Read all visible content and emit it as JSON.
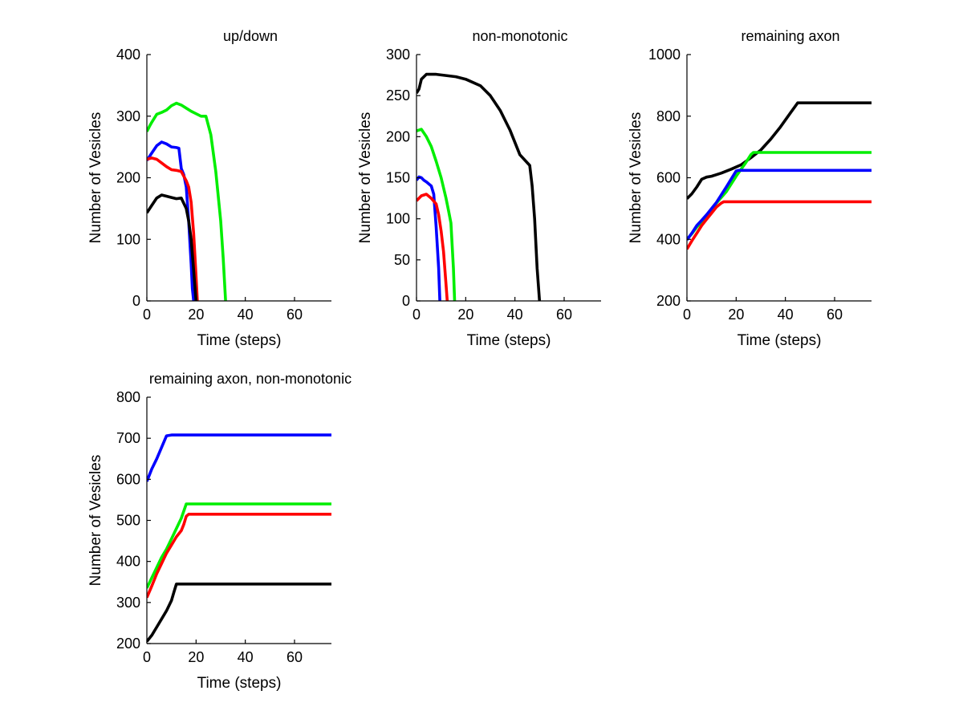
{
  "chart_data": [
    {
      "type": "line",
      "title": "up/down",
      "xlabel": "Time (steps)",
      "ylabel": "Number of Vesicles",
      "xlim": [
        0,
        75
      ],
      "ylim": [
        0,
        400
      ],
      "xticks": [
        0,
        20,
        40,
        60
      ],
      "yticks": [
        0,
        100,
        200,
        300,
        400
      ],
      "grid": false,
      "legend": "none",
      "series": [
        {
          "name": "green",
          "color": "#00ee00",
          "points": [
            [
              0,
              275
            ],
            [
              1,
              283
            ],
            [
              2,
              290
            ],
            [
              4,
              303
            ],
            [
              6,
              306
            ],
            [
              8,
              310
            ],
            [
              10,
              317
            ],
            [
              12,
              321
            ],
            [
              14,
              318
            ],
            [
              16,
              313
            ],
            [
              18,
              308
            ],
            [
              20,
              304
            ],
            [
              22,
              300
            ],
            [
              24,
              300
            ],
            [
              26,
              270
            ],
            [
              28,
              210
            ],
            [
              30,
              130
            ],
            [
              31,
              70
            ],
            [
              32,
              0
            ]
          ]
        },
        {
          "name": "blue",
          "color": "#0000ff",
          "points": [
            [
              0,
              228
            ],
            [
              2,
              240
            ],
            [
              4,
              252
            ],
            [
              6,
              258
            ],
            [
              8,
              255
            ],
            [
              10,
              250
            ],
            [
              12,
              249
            ],
            [
              13,
              248
            ],
            [
              14,
              215
            ],
            [
              15,
              205
            ],
            [
              16,
              185
            ],
            [
              17,
              130
            ],
            [
              18,
              60
            ],
            [
              18.5,
              20
            ],
            [
              19,
              0
            ]
          ]
        },
        {
          "name": "red",
          "color": "#ff0000",
          "points": [
            [
              0,
              230
            ],
            [
              2,
              232
            ],
            [
              4,
              230
            ],
            [
              6,
              224
            ],
            [
              8,
              218
            ],
            [
              10,
              213
            ],
            [
              12,
              212
            ],
            [
              14,
              210
            ],
            [
              16,
              195
            ],
            [
              17,
              185
            ],
            [
              18,
              160
            ],
            [
              19,
              110
            ],
            [
              20,
              40
            ],
            [
              20.5,
              0
            ]
          ]
        },
        {
          "name": "black",
          "color": "#000000",
          "points": [
            [
              0,
              143
            ],
            [
              2,
              155
            ],
            [
              4,
              167
            ],
            [
              6,
              172
            ],
            [
              8,
              170
            ],
            [
              10,
              168
            ],
            [
              12,
              166
            ],
            [
              14,
              167
            ],
            [
              16,
              150
            ],
            [
              17,
              130
            ],
            [
              18,
              100
            ],
            [
              19,
              50
            ],
            [
              20,
              0
            ]
          ]
        }
      ]
    },
    {
      "type": "line",
      "title": "non-monotonic",
      "xlabel": "Time (steps)",
      "ylabel": "Number of Vesicles",
      "xlim": [
        0,
        75
      ],
      "ylim": [
        0,
        300
      ],
      "xticks": [
        0,
        20,
        40,
        60
      ],
      "yticks": [
        0,
        50,
        100,
        150,
        200,
        250,
        300
      ],
      "grid": false,
      "legend": "none",
      "series": [
        {
          "name": "black",
          "color": "#000000",
          "points": [
            [
              0,
              253
            ],
            [
              1,
              258
            ],
            [
              2,
              270
            ],
            [
              4,
              276
            ],
            [
              8,
              276
            ],
            [
              16,
              273
            ],
            [
              20,
              270
            ],
            [
              26,
              262
            ],
            [
              30,
              250
            ],
            [
              34,
              232
            ],
            [
              38,
              208
            ],
            [
              42,
              178
            ],
            [
              46,
              165
            ],
            [
              47,
              140
            ],
            [
              48,
              100
            ],
            [
              49,
              40
            ],
            [
              50,
              0
            ]
          ]
        },
        {
          "name": "green",
          "color": "#00ee00",
          "points": [
            [
              0,
              207
            ],
            [
              2,
              209
            ],
            [
              4,
              200
            ],
            [
              6,
              188
            ],
            [
              8,
              170
            ],
            [
              10,
              150
            ],
            [
              12,
              125
            ],
            [
              13,
              110
            ],
            [
              14,
              95
            ],
            [
              15,
              40
            ],
            [
              15.5,
              0
            ]
          ]
        },
        {
          "name": "blue",
          "color": "#0000ff",
          "points": [
            [
              0,
              147
            ],
            [
              1,
              151
            ],
            [
              2,
              150
            ],
            [
              3,
              147
            ],
            [
              4,
              145
            ],
            [
              6,
              140
            ],
            [
              7,
              130
            ],
            [
              8,
              90
            ],
            [
              9,
              40
            ],
            [
              9.5,
              0
            ]
          ]
        },
        {
          "name": "red",
          "color": "#ff0000",
          "points": [
            [
              0,
              122
            ],
            [
              2,
              128
            ],
            [
              4,
              130
            ],
            [
              6,
              125
            ],
            [
              8,
              118
            ],
            [
              9,
              105
            ],
            [
              10,
              85
            ],
            [
              11,
              60
            ],
            [
              12,
              20
            ],
            [
              12.5,
              0
            ]
          ]
        }
      ]
    },
    {
      "type": "line",
      "title": "remaining axon",
      "xlabel": "Time (steps)",
      "ylabel": "Number of Vesicles",
      "xlim": [
        0,
        75
      ],
      "ylim": [
        200,
        1000
      ],
      "xticks": [
        0,
        20,
        40,
        60
      ],
      "yticks": [
        200,
        400,
        600,
        800,
        1000
      ],
      "grid": false,
      "legend": "none",
      "series": [
        {
          "name": "black",
          "color": "#000000",
          "points": [
            [
              0,
              532
            ],
            [
              2,
              548
            ],
            [
              4,
              570
            ],
            [
              6,
              595
            ],
            [
              8,
              602
            ],
            [
              10,
              605
            ],
            [
              14,
              615
            ],
            [
              18,
              628
            ],
            [
              22,
              642
            ],
            [
              26,
              665
            ],
            [
              30,
              690
            ],
            [
              34,
              725
            ],
            [
              38,
              765
            ],
            [
              42,
              810
            ],
            [
              45,
              843
            ],
            [
              75,
              843
            ]
          ]
        },
        {
          "name": "green",
          "color": "#00ee00",
          "points": [
            [
              0,
              400
            ],
            [
              2,
              418
            ],
            [
              4,
              440
            ],
            [
              6,
              458
            ],
            [
              8,
              478
            ],
            [
              12,
              518
            ],
            [
              16,
              555
            ],
            [
              20,
              605
            ],
            [
              24,
              650
            ],
            [
              26,
              675
            ],
            [
              27,
              682
            ],
            [
              75,
              682
            ]
          ]
        },
        {
          "name": "blue",
          "color": "#0000ff",
          "points": [
            [
              0,
              398
            ],
            [
              2,
              420
            ],
            [
              4,
              445
            ],
            [
              6,
              462
            ],
            [
              8,
              480
            ],
            [
              12,
              520
            ],
            [
              16,
              570
            ],
            [
              20,
              622
            ],
            [
              21,
              624
            ],
            [
              75,
              624
            ]
          ]
        },
        {
          "name": "red",
          "color": "#ff0000",
          "points": [
            [
              0,
              368
            ],
            [
              2,
              395
            ],
            [
              4,
              420
            ],
            [
              6,
              445
            ],
            [
              8,
              465
            ],
            [
              10,
              485
            ],
            [
              12,
              505
            ],
            [
              14,
              518
            ],
            [
              15,
              522
            ],
            [
              75,
              522
            ]
          ]
        }
      ]
    },
    {
      "type": "line",
      "title": "remaining axon, non-monotonic",
      "xlabel": "Time (steps)",
      "ylabel": "Number of Vesicles",
      "xlim": [
        0,
        75
      ],
      "ylim": [
        200,
        800
      ],
      "xticks": [
        0,
        20,
        40,
        60
      ],
      "yticks": [
        200,
        300,
        400,
        500,
        600,
        700,
        800
      ],
      "grid": false,
      "legend": "none",
      "series": [
        {
          "name": "blue",
          "color": "#0000ff",
          "points": [
            [
              0,
              595
            ],
            [
              2,
              625
            ],
            [
              4,
              650
            ],
            [
              6,
              678
            ],
            [
              8,
              706
            ],
            [
              10,
              708
            ],
            [
              75,
              708
            ]
          ]
        },
        {
          "name": "green",
          "color": "#00ee00",
          "points": [
            [
              0,
              335
            ],
            [
              2,
              360
            ],
            [
              4,
              385
            ],
            [
              6,
              410
            ],
            [
              8,
              430
            ],
            [
              10,
              455
            ],
            [
              12,
              480
            ],
            [
              14,
              505
            ],
            [
              16,
              540
            ],
            [
              75,
              540
            ]
          ]
        },
        {
          "name": "red",
          "color": "#ff0000",
          "points": [
            [
              0,
              312
            ],
            [
              2,
              340
            ],
            [
              4,
              370
            ],
            [
              6,
              395
            ],
            [
              8,
              420
            ],
            [
              10,
              440
            ],
            [
              12,
              460
            ],
            [
              14,
              475
            ],
            [
              15,
              490
            ],
            [
              16,
              510
            ],
            [
              17,
              515
            ],
            [
              75,
              515
            ]
          ]
        },
        {
          "name": "black",
          "color": "#000000",
          "points": [
            [
              0,
              205
            ],
            [
              2,
              220
            ],
            [
              4,
              240
            ],
            [
              6,
              260
            ],
            [
              8,
              280
            ],
            [
              10,
              305
            ],
            [
              11,
              325
            ],
            [
              12,
              345
            ],
            [
              75,
              345
            ]
          ]
        }
      ]
    }
  ]
}
